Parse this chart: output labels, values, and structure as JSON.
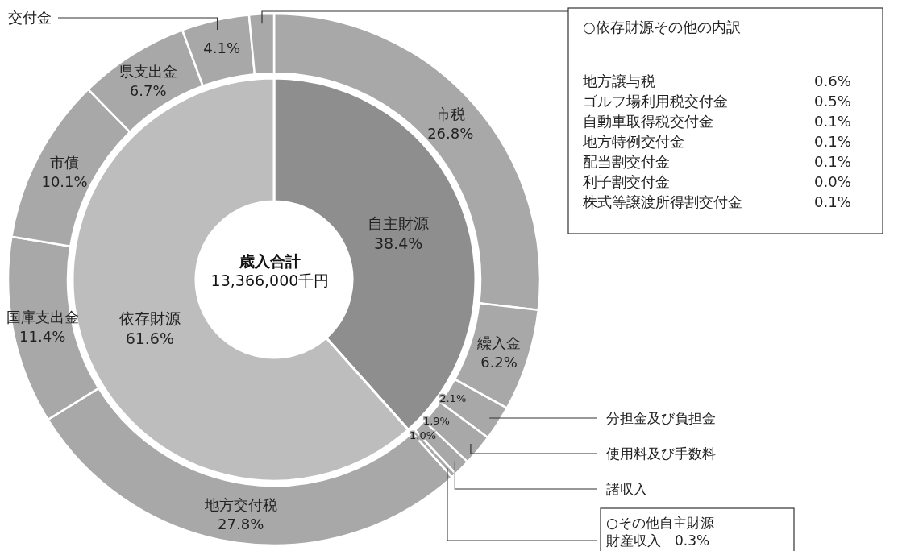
{
  "chart_data": [
    {
      "type": "donut",
      "title": "歳入合計",
      "subtitle": "13,366,000千円",
      "categories": [
        "自主財源",
        "依存財源"
      ],
      "values": [
        38.4,
        61.6
      ],
      "colors": [
        "#8e8e8e",
        "#bdbdbd"
      ],
      "value_labels": [
        "38.4%",
        "61.6%"
      ]
    },
    {
      "type": "donut",
      "categories": [
        "市税",
        "繰入金",
        "分担金及び負担金",
        "使用料及び手数料",
        "諸収入",
        "財産収入",
        "地方交付税",
        "国庫支出金",
        "市債",
        "県支出金",
        "交付金",
        null
      ],
      "values": [
        26.8,
        6.2,
        2.1,
        1.9,
        1.0,
        0.3,
        27.8,
        11.4,
        10.1,
        6.7,
        4.1,
        1.5
      ],
      "colors": [
        "#a8a8a8",
        "#a8a8a8",
        "#a8a8a8",
        "#a8a8a8",
        "#a8a8a8",
        "#a8a8a8",
        "#a8a8a8",
        "#a8a8a8",
        "#a8a8a8",
        "#a8a8a8",
        "#a8a8a8",
        "#a8a8a8"
      ],
      "value_labels": [
        "26.8%",
        "6.2%",
        "2.1%",
        "1.9%",
        "1.0%",
        "0.3%",
        "27.8%",
        "11.4%",
        "10.1%",
        "6.7%",
        "4.1%",
        null
      ],
      "annotations": [
        "○依存財源その他の内訳",
        "地方譲与税 0.6%",
        "ゴルフ場利用税交付金 0.5%",
        "自動車取得税交付金 0.1%",
        "地方特例交付金 0.1%",
        "配当割交付金 0.1%",
        "利子割交付金 0.0%",
        "株式等譲渡所得割交付金 0.1%",
        "○その他自主財源"
      ]
    }
  ]
}
